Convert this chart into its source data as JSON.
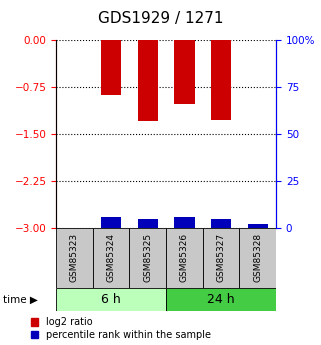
{
  "title": "GDS1929 / 1271",
  "samples": [
    "GSM85323",
    "GSM85324",
    "GSM85325",
    "GSM85326",
    "GSM85327",
    "GSM85328"
  ],
  "log2_ratio": [
    0.0,
    -0.88,
    -1.3,
    -1.02,
    -1.28,
    0.0
  ],
  "percentile_rank_scaled": [
    0.0,
    -0.165,
    -0.135,
    -0.165,
    -0.135,
    -0.06
  ],
  "ylim_left": [
    -3.0,
    0.0
  ],
  "ylim_right": [
    0,
    100
  ],
  "yticks_left": [
    0,
    -0.75,
    -1.5,
    -2.25,
    -3
  ],
  "yticks_right": [
    0,
    25,
    50,
    75,
    100
  ],
  "group_labels": [
    "6 h",
    "24 h"
  ],
  "group_ranges": [
    [
      0,
      3
    ],
    [
      3,
      6
    ]
  ],
  "group_colors": [
    "#bbffbb",
    "#44cc44"
  ],
  "bar_color_red": "#cc0000",
  "bar_color_blue": "#0000bb",
  "bar_width": 0.55,
  "bg_color_sample": "#c8c8c8",
  "legend_red": "log2 ratio",
  "legend_blue": "percentile rank within the sample",
  "title_fontsize": 11,
  "tick_fontsize": 7.5,
  "sample_fontsize": 6.5,
  "group_fontsize": 9,
  "legend_fontsize": 7
}
